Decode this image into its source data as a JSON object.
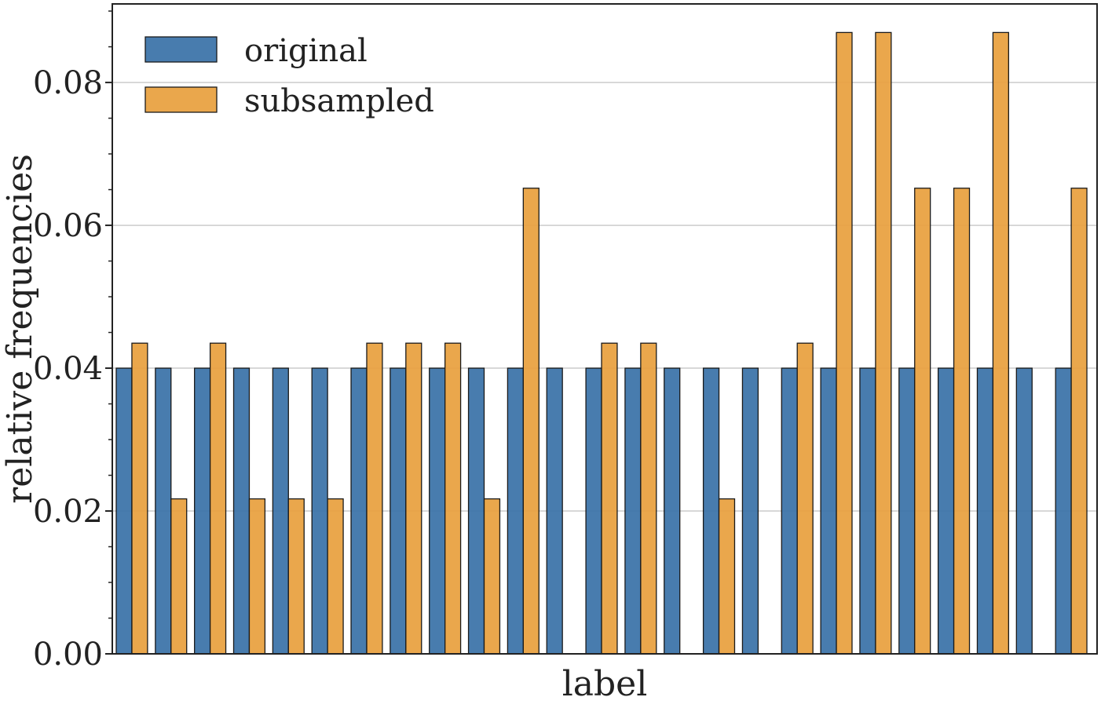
{
  "chart_data": {
    "type": "bar",
    "title": "",
    "xlabel": "label",
    "ylabel": "relative frequencies",
    "ylim": [
      0,
      0.091
    ],
    "yticks": [
      "0.00",
      "0.02",
      "0.04",
      "0.06",
      "0.08"
    ],
    "grid": "horizontal",
    "legend_position": "top-left",
    "bar_edge_color": "#1a1a1a",
    "num_categories": 25,
    "series": [
      {
        "name": "original",
        "color": "#3a72a8",
        "values": [
          0.04,
          0.04,
          0.04,
          0.04,
          0.04,
          0.04,
          0.04,
          0.04,
          0.04,
          0.04,
          0.04,
          0.04,
          0.04,
          0.04,
          0.04,
          0.04,
          0.04,
          0.04,
          0.04,
          0.04,
          0.04,
          0.04,
          0.04,
          0.04,
          0.04
        ]
      },
      {
        "name": "subsampled",
        "color": "#e8a03e",
        "values": [
          0.0435,
          0.0217,
          0.0435,
          0.0217,
          0.0217,
          0.0217,
          0.0435,
          0.0435,
          0.0435,
          0.0217,
          0.0652,
          0,
          0.0435,
          0.0435,
          0,
          0.0217,
          0,
          0.0435,
          0.087,
          0.087,
          0.0652,
          0.0652,
          0.087,
          0,
          0.0652
        ]
      }
    ]
  }
}
